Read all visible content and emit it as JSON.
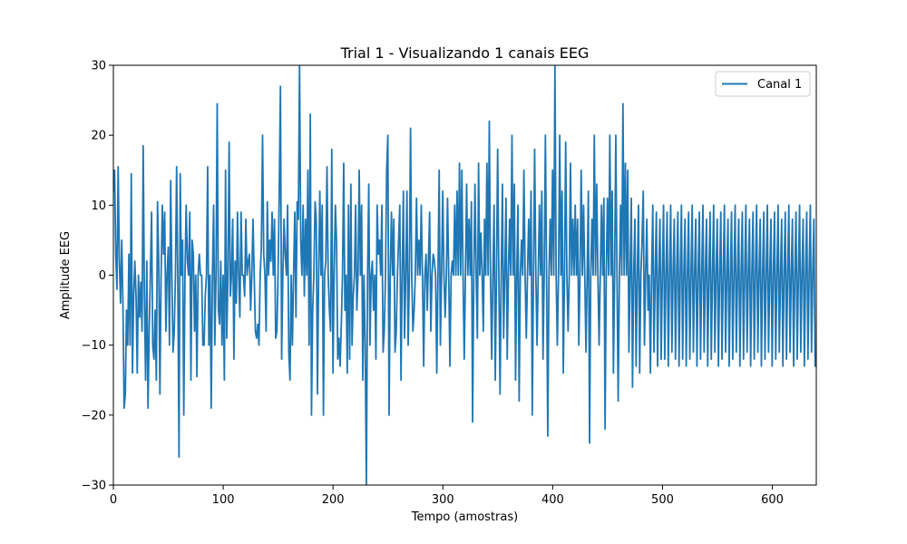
{
  "chart_data": {
    "type": "line",
    "title": "Trial 1 - Visualizando 1 canais EEG",
    "xlabel": "Tempo (amostras)",
    "ylabel": "Amplitude EEG",
    "xlim": [
      0,
      640
    ],
    "ylim": [
      -30,
      30
    ],
    "xticks": [
      0,
      100,
      200,
      300,
      400,
      500,
      600
    ],
    "yticks": [
      -30,
      -20,
      -10,
      0,
      10,
      20,
      30
    ],
    "grid": false,
    "legend_position": "top-right",
    "series": [
      {
        "name": "Canal 1",
        "color": "#1f77b4",
        "values": [
          12,
          15,
          3,
          -2,
          15.5,
          2,
          -4,
          5,
          -4,
          -19,
          -17,
          -5,
          -10,
          3,
          -10,
          14.5,
          -14,
          -3,
          2,
          -3,
          -14,
          0,
          -6,
          -1,
          -8,
          18.5,
          -3,
          -15,
          2,
          -19,
          -8,
          0,
          9,
          -10,
          -12,
          -5,
          -15,
          10.5,
          2,
          -17,
          0,
          10,
          3,
          9,
          -8,
          0,
          4,
          -10,
          13.5,
          0,
          -11,
          -8,
          0,
          15.5,
          -1,
          -26,
          14.5,
          0,
          5,
          -20,
          0,
          10,
          2,
          0,
          9,
          -15,
          5,
          3,
          -8,
          0,
          -14.5,
          0,
          3,
          0,
          0,
          -10,
          -10,
          -3,
          0,
          15.5,
          -10,
          0,
          -19,
          0,
          10,
          -10,
          0,
          24.5,
          -5,
          -7,
          2,
          -10,
          0,
          -15,
          15,
          -9,
          0,
          19,
          -3,
          0,
          8,
          -12,
          2,
          -4,
          9,
          0,
          -6,
          9,
          0,
          0,
          -3,
          8,
          0,
          2,
          3,
          -5,
          0,
          8,
          0,
          -8,
          -9,
          -7,
          -10,
          0,
          4,
          20,
          3,
          0,
          -8,
          10.5,
          0,
          5,
          2,
          9,
          0,
          8,
          -9,
          -8,
          0,
          12,
          27,
          -12,
          0,
          8,
          3,
          0,
          10,
          -11,
          -15,
          0,
          -10,
          0,
          9,
          -6,
          10.5,
          8,
          30,
          5,
          0,
          10,
          -3,
          8,
          0,
          15,
          -10,
          23,
          -20,
          -5,
          0,
          10.5,
          8,
          -17,
          0,
          12,
          0,
          10,
          -20,
          0,
          2,
          15.5,
          0,
          -5,
          -8,
          18,
          -14,
          0,
          10,
          5,
          -12,
          -9,
          -13,
          -7,
          0,
          16,
          -5,
          0,
          -14,
          10,
          -12,
          13,
          -10,
          -3,
          0,
          10,
          -5,
          0,
          15,
          0,
          10,
          -15,
          0,
          -10,
          -30,
          0,
          13,
          -10,
          0,
          2,
          -5,
          0,
          -12,
          10,
          3,
          5,
          0,
          10,
          -11,
          -8,
          0,
          15,
          20,
          -20,
          0,
          9,
          0,
          8,
          -11,
          -8,
          0,
          5,
          10,
          -15,
          0,
          12,
          -9,
          0,
          12,
          -10,
          0,
          21,
          0,
          -8,
          -5,
          0,
          11,
          0,
          5,
          0,
          10,
          0,
          -13,
          0,
          3,
          -5,
          2,
          9,
          -8,
          0,
          3,
          2,
          0,
          -14,
          0,
          15,
          -10,
          0,
          12,
          0,
          -6,
          0,
          11,
          0,
          -13,
          0,
          2,
          0,
          10,
          0,
          12,
          0,
          16,
          0,
          15,
          0,
          -12,
          0,
          13,
          0,
          8,
          0,
          10.5,
          -21,
          0,
          13,
          0,
          -9,
          16,
          0,
          6,
          0,
          -8,
          8,
          0,
          16,
          0,
          22,
          0,
          -12,
          0,
          10,
          -15,
          0,
          18,
          0,
          -17,
          0,
          13,
          -9,
          0,
          11,
          -12,
          0,
          8,
          0,
          20,
          0,
          13,
          -15,
          0,
          10,
          -18,
          0,
          5,
          0,
          15,
          0,
          -9,
          0,
          8,
          0,
          12,
          -20,
          0,
          18,
          0,
          -10,
          0,
          10,
          0,
          12,
          -12,
          0,
          20,
          0,
          -23,
          0,
          8,
          0,
          15,
          0,
          30,
          0,
          -10,
          0,
          20,
          0,
          12,
          -14,
          0,
          19,
          0,
          -8,
          0,
          16,
          0,
          8,
          0,
          10,
          0,
          8,
          -10,
          0,
          15,
          0,
          10,
          0,
          -11,
          0,
          12,
          -24,
          0,
          8,
          0,
          20,
          0,
          13,
          0,
          -10,
          0,
          10,
          0,
          11,
          -22,
          0,
          11,
          0,
          20,
          0,
          12,
          -14,
          0,
          20,
          0,
          -18,
          0,
          10,
          0,
          24.5,
          0,
          16,
          0,
          15,
          -11,
          0,
          11,
          -16,
          0,
          8,
          -13,
          0,
          10,
          -14,
          0,
          5,
          12,
          -10,
          0,
          8,
          -5,
          0,
          -14,
          0,
          10,
          -11,
          0,
          9,
          -13,
          0,
          8,
          -12,
          0,
          10,
          -12,
          0,
          9,
          -13,
          0,
          10,
          -11,
          0,
          8,
          -12,
          0,
          9,
          -13,
          0,
          10,
          -12,
          0,
          8,
          -13,
          0,
          9,
          -12,
          0,
          10,
          -11,
          0,
          8,
          -13,
          0,
          9,
          -12,
          0,
          10,
          -11,
          0,
          8,
          -13,
          0,
          9,
          -12,
          0,
          10,
          -11,
          0,
          8,
          -13,
          0,
          9,
          -12,
          0,
          10,
          -11,
          0,
          8,
          -13,
          0,
          9,
          -12,
          0,
          10,
          -11,
          0,
          8,
          -13,
          0,
          9,
          -12,
          0,
          10,
          -11,
          0,
          8,
          -13,
          0,
          9,
          -12,
          0,
          10,
          -11,
          0,
          8,
          -13,
          0,
          9,
          -12,
          0,
          10,
          -11,
          0,
          8,
          -13,
          0,
          9,
          -12,
          0,
          10,
          -11,
          0,
          8,
          -13,
          0,
          9,
          -12,
          0,
          10,
          -11,
          0,
          8,
          -13,
          0,
          9,
          -12,
          0,
          10,
          -11,
          0,
          8,
          -13,
          0,
          9,
          -12,
          0,
          10,
          -11,
          0,
          8,
          -13,
          -13
        ]
      }
    ]
  }
}
